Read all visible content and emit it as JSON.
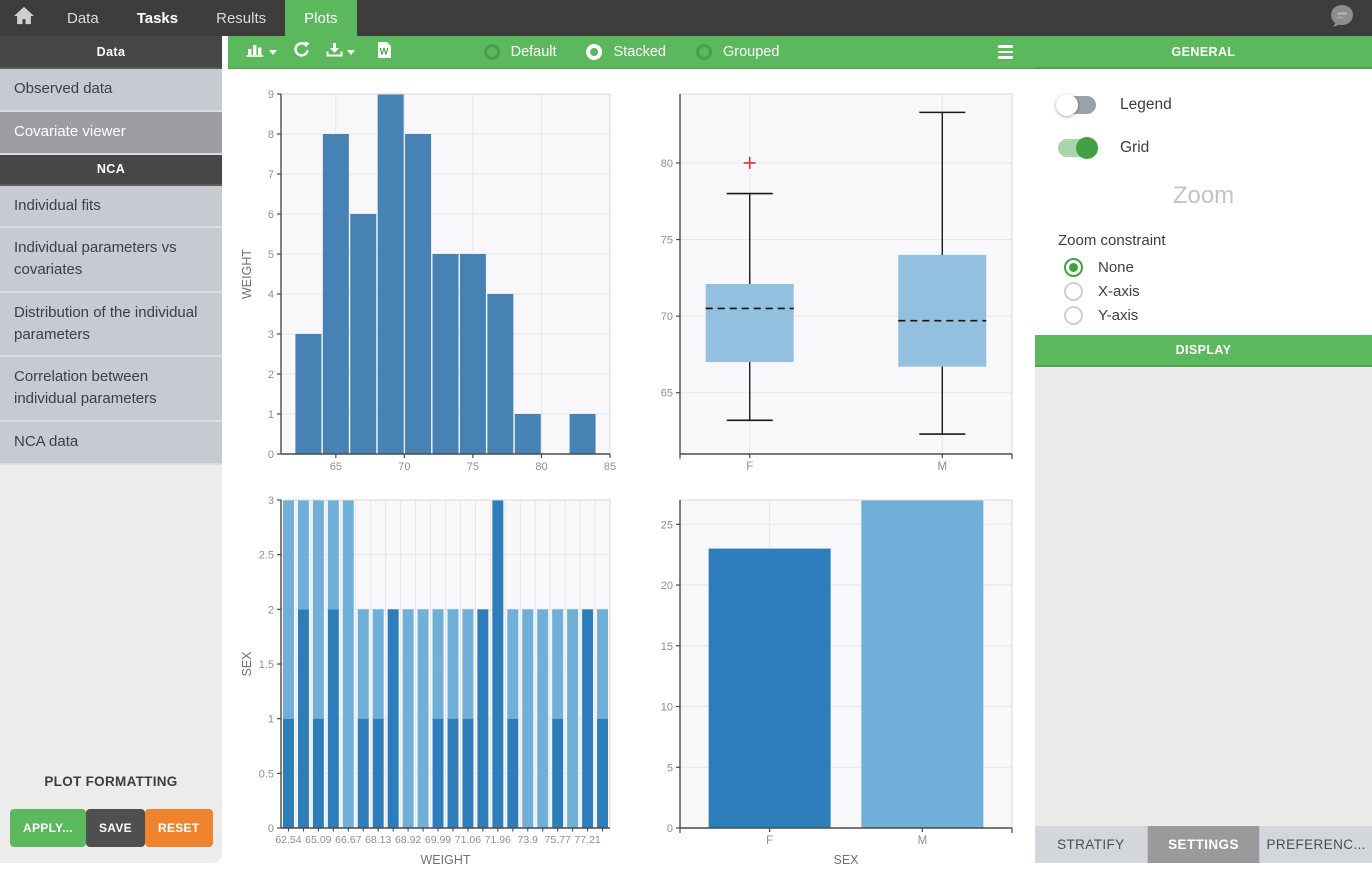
{
  "navbar": {
    "tabs": [
      {
        "label": "Data",
        "active": false,
        "bold": false
      },
      {
        "label": "Tasks",
        "active": false,
        "bold": true
      },
      {
        "label": "Results",
        "active": false,
        "bold": false
      },
      {
        "label": "Plots",
        "active": true,
        "bold": false
      }
    ]
  },
  "toolbar": {
    "modes": [
      {
        "label": "Default",
        "selected": false
      },
      {
        "label": "Stacked",
        "selected": true
      },
      {
        "label": "Grouped",
        "selected": false
      }
    ],
    "word_icon_letter": "W"
  },
  "sidebar": {
    "sections": [
      {
        "header": "Data",
        "items": [
          {
            "label": "Observed data",
            "selected": false
          },
          {
            "label": "Covariate viewer",
            "selected": true
          }
        ]
      },
      {
        "header": "NCA",
        "items": [
          {
            "label": "Individual fits",
            "selected": false
          },
          {
            "label": "Individual parameters vs covariates",
            "selected": false
          },
          {
            "label": "Distribution of the individual parameters",
            "selected": false
          },
          {
            "label": "Correlation between individual parameters",
            "selected": false
          },
          {
            "label": "NCA data",
            "selected": false
          }
        ]
      }
    ],
    "plot_formatting": {
      "title": "PLOT FORMATTING",
      "buttons": [
        {
          "label": "APPLY...",
          "color": "#5cb85c"
        },
        {
          "label": "SAVE",
          "color": "#4f4f4f"
        },
        {
          "label": "RESET",
          "color": "#f0832d"
        }
      ]
    }
  },
  "right_panel": {
    "general_header": "GENERAL",
    "toggles": [
      {
        "label": "Legend",
        "on": false
      },
      {
        "label": "Grid",
        "on": true
      }
    ],
    "zoom_title": "Zoom",
    "zoom_constraint": {
      "label": "Zoom constraint",
      "options": [
        {
          "label": "None",
          "selected": true
        },
        {
          "label": "X-axis",
          "selected": false
        },
        {
          "label": "Y-axis",
          "selected": false
        }
      ]
    },
    "display_header": "DISPLAY",
    "bottom_tabs": [
      {
        "label": "STRATIFY",
        "active": false
      },
      {
        "label": "SETTINGS",
        "active": true
      },
      {
        "label": "PREFERENC...",
        "active": false
      }
    ]
  },
  "chart_style": {
    "bg": "#f8f8fb",
    "frame": "#d8d8de",
    "grid": "#e5e5eb",
    "axis": "#4a4a4a",
    "tick_label": "#8f8f8f",
    "axis_label": "#717171"
  },
  "chart_data": [
    {
      "type": "histogram",
      "name": "weight-histogram",
      "ylabel": "WEIGHT",
      "bin_edges": [
        62,
        64,
        66,
        68,
        70,
        72,
        74,
        76,
        78,
        80,
        82,
        84
      ],
      "counts": [
        3,
        8,
        6,
        9,
        8,
        5,
        5,
        4,
        1,
        0,
        1
      ],
      "xlim": [
        61,
        85
      ],
      "ylim": [
        0,
        9
      ],
      "xticks": [
        65,
        70,
        75,
        80,
        85
      ],
      "yticks": [
        0,
        1,
        2,
        3,
        4,
        5,
        6,
        7,
        8,
        9
      ],
      "bar_color": "#4682b4",
      "grid": true
    },
    {
      "type": "boxplot",
      "name": "weight-by-sex-boxplot",
      "categories": [
        "F",
        "M"
      ],
      "ylim": [
        61,
        84.5
      ],
      "yticks": [
        65,
        70,
        75,
        80
      ],
      "boxes": [
        {
          "category": "F",
          "whisker_low": 63.2,
          "q1": 67.0,
          "median": 70.5,
          "q3": 72.1,
          "whisker_high": 78.0,
          "outliers": [
            80.0
          ]
        },
        {
          "category": "M",
          "whisker_low": 62.3,
          "q1": 66.7,
          "median": 69.7,
          "q3": 74.0,
          "whisker_high": 83.3,
          "outliers": []
        }
      ],
      "box_color": "#92c0de",
      "median_style": "dashed",
      "whisker_color": "#1a1a1a",
      "outlier_color": "#e03131",
      "outlier_marker": "+",
      "grid": true
    },
    {
      "type": "stacked-bar",
      "name": "sex-by-weight-stacked",
      "xlabel": "WEIGHT",
      "ylabel": "SEX",
      "ylim": [
        0,
        3
      ],
      "yticks": [
        "0",
        "0.5",
        "1",
        "1.5",
        "2",
        "2.5",
        "3"
      ],
      "x_tick_labels": [
        "62.54",
        "65.09",
        "66.67",
        "68.13",
        "68.92",
        "69.99",
        "71.06",
        "71.96",
        "73.9",
        "75.77",
        "77.21"
      ],
      "series_colors": {
        "bottom": "#2d7dbb",
        "top": "#6fafd8"
      },
      "bars": [
        {
          "bottom": 1,
          "top": 2
        },
        {
          "bottom": 2,
          "top": 1
        },
        {
          "bottom": 1,
          "top": 2
        },
        {
          "bottom": 2,
          "top": 1
        },
        {
          "bottom": 0,
          "top": 3
        },
        {
          "bottom": 1,
          "top": 1
        },
        {
          "bottom": 1,
          "top": 1
        },
        {
          "bottom": 2,
          "top": 0
        },
        {
          "bottom": 0,
          "top": 2
        },
        {
          "bottom": 0,
          "top": 2
        },
        {
          "bottom": 1,
          "top": 1
        },
        {
          "bottom": 1,
          "top": 1
        },
        {
          "bottom": 1,
          "top": 1
        },
        {
          "bottom": 2,
          "top": 0
        },
        {
          "bottom": 3,
          "top": 0
        },
        {
          "bottom": 1,
          "top": 1
        },
        {
          "bottom": 0,
          "top": 2
        },
        {
          "bottom": 0,
          "top": 2
        },
        {
          "bottom": 1,
          "top": 1
        },
        {
          "bottom": 0,
          "top": 2
        },
        {
          "bottom": 2,
          "top": 0
        },
        {
          "bottom": 1,
          "top": 1
        }
      ],
      "grid": true
    },
    {
      "type": "bar",
      "name": "sex-counts",
      "xlabel": "SEX",
      "categories": [
        "F",
        "M"
      ],
      "values": [
        23,
        27
      ],
      "bar_colors": [
        "#2d7dbb",
        "#6fafd8"
      ],
      "ylim": [
        0,
        27
      ],
      "yticks": [
        0,
        5,
        10,
        15,
        20,
        25
      ],
      "grid": true
    }
  ]
}
